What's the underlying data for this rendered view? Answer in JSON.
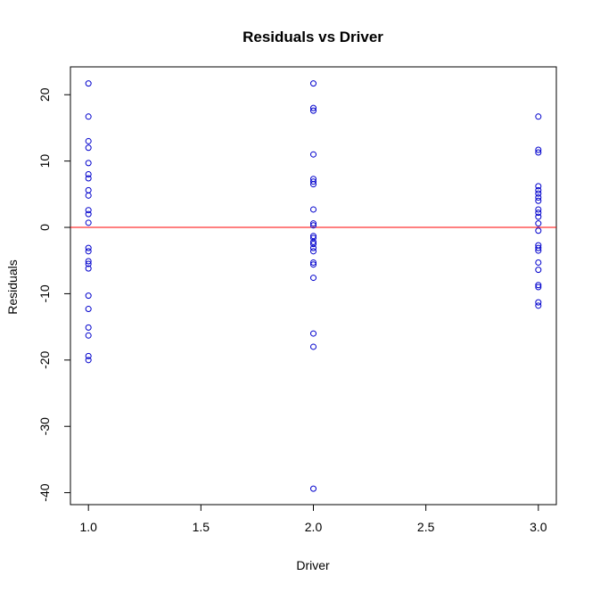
{
  "chart_data": {
    "type": "scatter",
    "title": "Residuals vs Driver",
    "xlabel": "Driver",
    "ylabel": "Residuals",
    "xlim": [
      0.92,
      3.08
    ],
    "ylim": [
      -41.8,
      24.2
    ],
    "x_ticks": [
      1.0,
      1.5,
      2.0,
      2.5,
      3.0
    ],
    "x_tick_labels": [
      "1.0",
      "1.5",
      "2.0",
      "2.5",
      "3.0"
    ],
    "y_ticks": [
      -40,
      -30,
      -20,
      -10,
      0,
      10,
      20
    ],
    "y_tick_labels": [
      "-40",
      "-30",
      "-20",
      "-10",
      "0",
      "10",
      "20"
    ],
    "reference_line": {
      "y": 0,
      "color": "#ff0000"
    },
    "point_color": "#0000cc",
    "series": [
      {
        "points": [
          [
            1,
            21.7
          ],
          [
            1,
            16.7
          ],
          [
            1,
            13.0
          ],
          [
            1,
            12.0
          ],
          [
            1,
            9.7
          ],
          [
            1,
            8.0
          ],
          [
            1,
            7.4
          ],
          [
            1,
            5.6
          ],
          [
            1,
            4.8
          ],
          [
            1,
            2.6
          ],
          [
            1,
            2.0
          ],
          [
            1,
            0.7
          ],
          [
            1,
            -3.1
          ],
          [
            1,
            -3.6
          ],
          [
            1,
            -5.1
          ],
          [
            1,
            -5.5
          ],
          [
            1,
            -6.2
          ],
          [
            1,
            -10.3
          ],
          [
            1,
            -12.3
          ],
          [
            1,
            -15.1
          ],
          [
            1,
            -16.3
          ],
          [
            1,
            -19.4
          ],
          [
            1,
            -20.0
          ],
          [
            2,
            21.7
          ],
          [
            2,
            18.0
          ],
          [
            2,
            17.6
          ],
          [
            2,
            11.0
          ],
          [
            2,
            7.3
          ],
          [
            2,
            6.9
          ],
          [
            2,
            6.5
          ],
          [
            2,
            2.7
          ],
          [
            2,
            0.6
          ],
          [
            2,
            0.3
          ],
          [
            2,
            -1.3
          ],
          [
            2,
            -1.6
          ],
          [
            2,
            -2.2
          ],
          [
            2,
            -2.5
          ],
          [
            2,
            -3.1
          ],
          [
            2,
            -3.6
          ],
          [
            2,
            -5.3
          ],
          [
            2,
            -5.6
          ],
          [
            2,
            -7.6
          ],
          [
            2,
            -16.0
          ],
          [
            2,
            -18.0
          ],
          [
            2,
            -39.4
          ],
          [
            3,
            16.7
          ],
          [
            3,
            11.7
          ],
          [
            3,
            11.3
          ],
          [
            3,
            6.2
          ],
          [
            3,
            5.6
          ],
          [
            3,
            5.1
          ],
          [
            3,
            4.5
          ],
          [
            3,
            4.0
          ],
          [
            3,
            2.7
          ],
          [
            3,
            2.2
          ],
          [
            3,
            1.6
          ],
          [
            3,
            0.6
          ],
          [
            3,
            -0.5
          ],
          [
            3,
            -2.7
          ],
          [
            3,
            -3.1
          ],
          [
            3,
            -3.5
          ],
          [
            3,
            -5.3
          ],
          [
            3,
            -6.4
          ],
          [
            3,
            -8.7
          ],
          [
            3,
            -9.0
          ],
          [
            3,
            -11.3
          ],
          [
            3,
            -11.8
          ]
        ]
      }
    ]
  }
}
